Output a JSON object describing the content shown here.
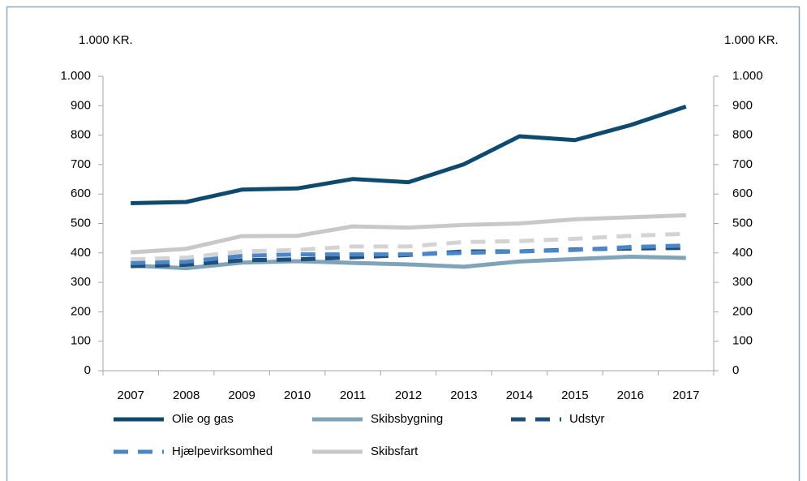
{
  "chart_data": {
    "type": "line",
    "y_label": "1.000 KR.",
    "y2_label": "1.000 KR.",
    "categories": [
      "2007",
      "2008",
      "2009",
      "2010",
      "2011",
      "2012",
      "2013",
      "2014",
      "2015",
      "2016",
      "2017"
    ],
    "series": [
      {
        "name": "Olie og gas",
        "color": "#0e4a6e",
        "dashed": false,
        "values": [
          569,
          573,
          615,
          619,
          651,
          640,
          701,
          796,
          783,
          834,
          897
        ]
      },
      {
        "name": "Skibsbygning",
        "color": "#7fa3b8",
        "dashed": false,
        "values": [
          357,
          348,
          367,
          372,
          366,
          361,
          353,
          371,
          379,
          387,
          383
        ]
      },
      {
        "name": "Udstyr",
        "color": "#1f4e79",
        "dashed": true,
        "values": [
          355,
          360,
          375,
          378,
          385,
          393,
          405,
          405,
          412,
          415,
          417
        ]
      },
      {
        "name": "Hjælpevirksomhed",
        "color": "#4a86c8",
        "dashed": true,
        "values": [
          365,
          370,
          390,
          395,
          395,
          395,
          400,
          405,
          410,
          420,
          425
        ]
      },
      {
        "name": "Skibsfart",
        "color": "#c8c8c8",
        "dashed": false,
        "values": [
          402,
          414,
          457,
          458,
          490,
          486,
          495,
          500,
          514,
          521,
          528
        ]
      },
      {
        "color": "#d3d3d3",
        "dashed": true,
        "values": [
          378,
          384,
          405,
          410,
          422,
          422,
          437,
          440,
          448,
          458,
          465
        ]
      }
    ],
    "ylim": [
      0,
      1000
    ],
    "yticks": [
      0,
      100,
      200,
      300,
      400,
      500,
      600,
      700,
      800,
      900,
      {
        "value": 1000,
        "label": "1.000"
      }
    ],
    "y2lim": [
      0,
      1000
    ],
    "y2ticks": [
      0,
      100,
      200,
      300,
      400,
      500,
      600,
      700,
      800,
      900,
      {
        "value": 1000,
        "label": "1.000"
      }
    ],
    "grid": false
  }
}
